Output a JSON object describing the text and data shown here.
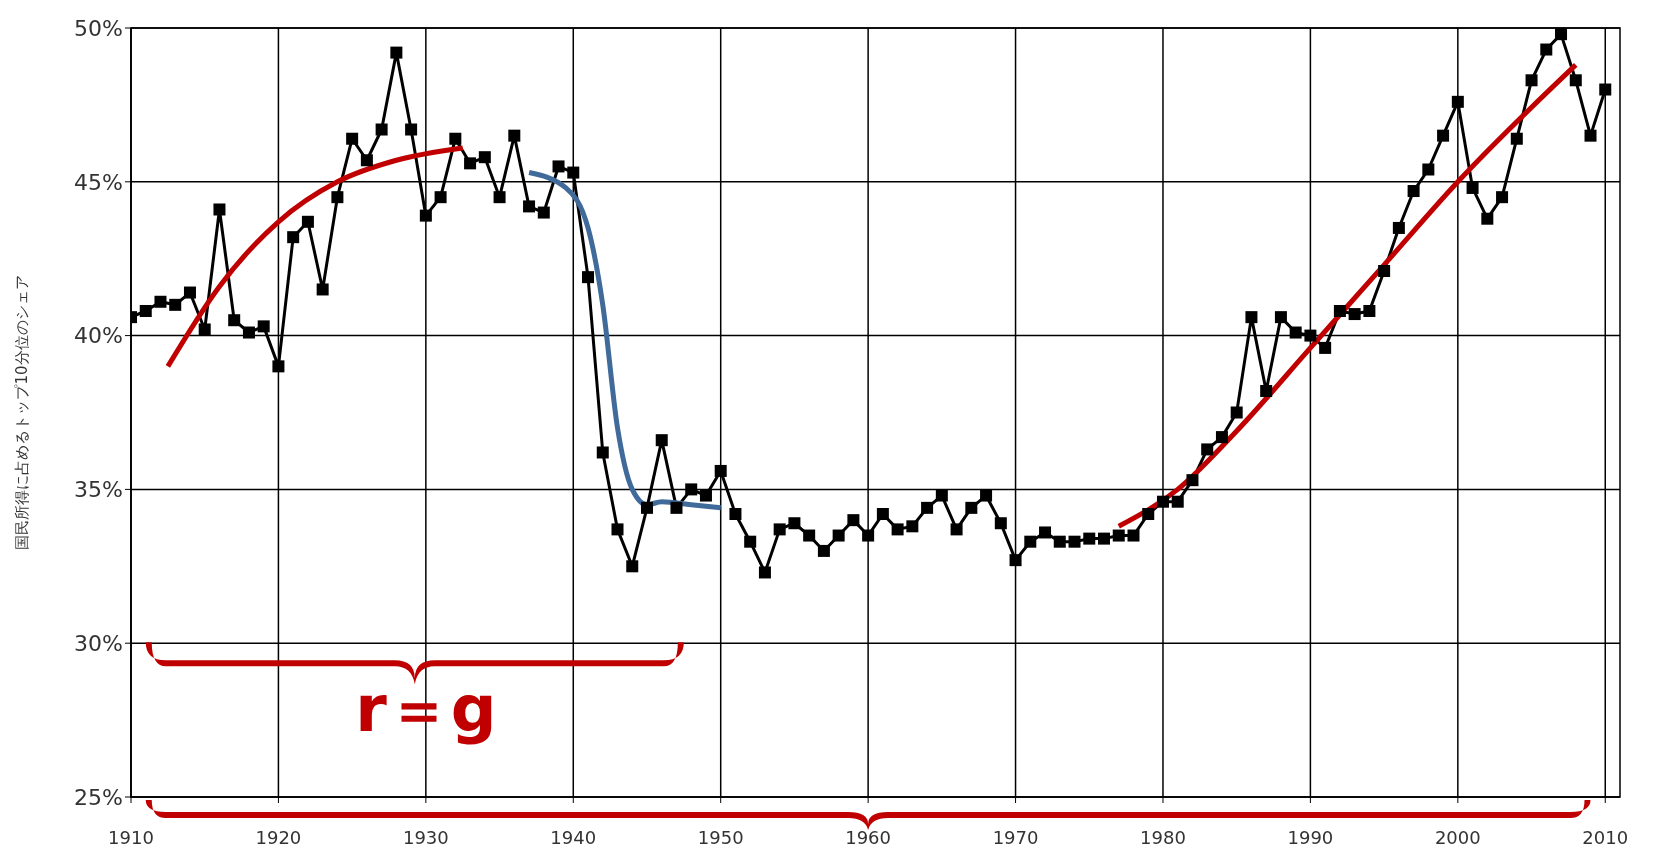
{
  "chart_data": {
    "type": "line",
    "ylabel": "国民所得に占めるトップ10分位のシェア",
    "x": [
      1910,
      1911,
      1912,
      1913,
      1914,
      1915,
      1916,
      1917,
      1918,
      1919,
      1920,
      1921,
      1922,
      1923,
      1924,
      1925,
      1926,
      1927,
      1928,
      1929,
      1930,
      1931,
      1932,
      1933,
      1934,
      1935,
      1936,
      1937,
      1938,
      1939,
      1940,
      1941,
      1942,
      1943,
      1944,
      1945,
      1946,
      1947,
      1948,
      1949,
      1950,
      1951,
      1952,
      1953,
      1954,
      1955,
      1956,
      1957,
      1958,
      1959,
      1960,
      1961,
      1962,
      1963,
      1964,
      1965,
      1966,
      1967,
      1968,
      1969,
      1970,
      1971,
      1972,
      1973,
      1974,
      1975,
      1976,
      1977,
      1978,
      1979,
      1980,
      1981,
      1982,
      1983,
      1984,
      1985,
      1986,
      1987,
      1988,
      1989,
      1990,
      1991,
      1992,
      1993,
      1994,
      1995,
      1996,
      1997,
      1998,
      1999,
      2000,
      2001,
      2002,
      2003,
      2004,
      2005,
      2006,
      2007,
      2008,
      2009,
      2010
    ],
    "series": [
      {
        "color": "#000000",
        "marker": "square",
        "values": [
          40.6,
          40.8,
          41.1,
          41.0,
          41.4,
          40.2,
          44.1,
          40.5,
          40.1,
          40.3,
          39.0,
          43.2,
          43.7,
          41.5,
          44.5,
          46.4,
          45.7,
          46.7,
          49.2,
          46.7,
          43.9,
          44.5,
          46.4,
          45.6,
          45.8,
          44.5,
          46.5,
          44.2,
          44.0,
          45.5,
          45.3,
          41.9,
          36.2,
          33.7,
          32.5,
          34.4,
          36.6,
          34.4,
          35.0,
          34.8,
          35.6,
          34.2,
          33.3,
          32.3,
          33.7,
          33.9,
          33.5,
          33.0,
          33.5,
          34.0,
          33.5,
          34.2,
          33.7,
          33.8,
          34.4,
          34.8,
          33.7,
          34.4,
          34.8,
          33.9,
          32.7,
          33.3,
          33.6,
          33.3,
          33.3,
          33.4,
          33.4,
          33.5,
          33.5,
          34.2,
          34.6,
          34.6,
          35.3,
          36.3,
          36.7,
          37.5,
          40.6,
          38.2,
          40.6,
          40.1,
          40.0,
          39.6,
          40.8,
          40.7,
          40.8,
          42.1,
          43.5,
          44.7,
          45.4,
          46.5,
          47.6,
          44.8,
          43.8,
          44.5,
          46.4,
          48.3,
          49.3,
          49.8,
          48.3,
          46.5,
          48.0
        ]
      },
      {
        "type": "line",
        "color": "#c00000",
        "marker": "none",
        "x": [
          1912.5,
          1916,
          1920,
          1924,
          1928,
          1932.5
        ],
        "values": [
          39.0,
          41.6,
          43.7,
          45.0,
          45.7,
          46.1
        ]
      },
      {
        "type": "line",
        "color": "#3f6a9a",
        "marker": "none",
        "x": [
          1937,
          1939.5,
          1941,
          1942,
          1943,
          1944,
          1945,
          1946,
          1948,
          1950
        ],
        "values": [
          45.3,
          44.8,
          43.5,
          41,
          37,
          35.0,
          34.5,
          34.6,
          34.5,
          34.4
        ]
      },
      {
        "type": "line",
        "color": "#c00000",
        "marker": "none",
        "x": [
          1977,
          1981,
          1985,
          1990,
          1995,
          2000,
          2008
        ],
        "values": [
          33.8,
          35.0,
          36.9,
          39.6,
          42.3,
          45.0,
          48.8
        ]
      }
    ],
    "xlim": [
      1910,
      2011
    ],
    "xticks": [
      1910,
      1920,
      1930,
      1940,
      1950,
      1960,
      1970,
      1980,
      1990,
      2000,
      2010
    ],
    "ylim": [
      25,
      50
    ],
    "yticks": [
      {
        "value": 25,
        "label": "25%"
      },
      {
        "value": 30,
        "label": "30%"
      },
      {
        "value": 35,
        "label": "35%"
      },
      {
        "value": 40,
        "label": "40%"
      },
      {
        "value": 45,
        "label": "45%"
      },
      {
        "value": 50,
        "label": "50%"
      }
    ],
    "grid": true,
    "annotations": [
      "r＝g"
    ]
  }
}
